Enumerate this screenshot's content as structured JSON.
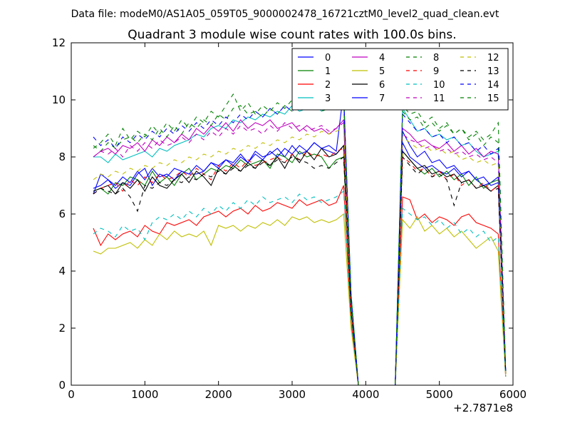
{
  "suptitle": "Data file: modeM0/AS1A05_059T05_9000002478_16721cztM0_level2_quad_clean.evt",
  "chart_data": {
    "type": "line",
    "title": "Quadrant 3 module wise count rates with 100.0s bins.",
    "xlabel": "",
    "ylabel": "",
    "x_offset_label": "+2.7871e8",
    "xlim": [
      0,
      6000
    ],
    "ylim": [
      0,
      12
    ],
    "xticks": [
      0,
      1000,
      2000,
      3000,
      4000,
      5000,
      6000
    ],
    "yticks": [
      0,
      2,
      4,
      6,
      8,
      10,
      12
    ],
    "grid": false,
    "legend_position": "top-right",
    "x": [
      300,
      400,
      500,
      600,
      700,
      800,
      900,
      1000,
      1100,
      1200,
      1300,
      1400,
      1500,
      1600,
      1700,
      1800,
      1900,
      2000,
      2100,
      2200,
      2300,
      2400,
      2500,
      2600,
      2700,
      2800,
      2900,
      3000,
      3100,
      3200,
      3300,
      3400,
      3500,
      3600,
      3700,
      3800,
      3900,
      4000,
      4100,
      4200,
      4300,
      4400,
      4500,
      4600,
      4700,
      4800,
      4900,
      5000,
      5100,
      5200,
      5300,
      5400,
      5500,
      5600,
      5700,
      5800,
      5900
    ],
    "series": [
      {
        "name": "0",
        "color": "#0000ff",
        "dash": "solid",
        "values": [
          6.7,
          7.4,
          7.2,
          6.9,
          7.1,
          7.0,
          7.4,
          7.6,
          7.0,
          7.4,
          7.3,
          7.6,
          7.5,
          7.4,
          7.4,
          7.5,
          7.8,
          7.7,
          7.9,
          7.8,
          8.1,
          7.8,
          8.2,
          8.0,
          8.1,
          8.3,
          8.0,
          8.4,
          8.1,
          8.2,
          8.5,
          8.3,
          8.2,
          8.1,
          8.4,
          2.8,
          0,
          0,
          0,
          0,
          0,
          0,
          8.5,
          8.0,
          7.8,
          7.6,
          7.7,
          7.5,
          7.4,
          7.6,
          7.3,
          7.5,
          7.2,
          7.0,
          7.1,
          7.3,
          0.5
        ]
      },
      {
        "name": "1",
        "color": "#008000",
        "dash": "solid",
        "values": [
          6.8,
          6.9,
          6.7,
          7.1,
          7.0,
          7.3,
          7.2,
          7.0,
          7.5,
          7.1,
          7.3,
          7.0,
          7.4,
          7.6,
          7.2,
          7.4,
          7.6,
          7.5,
          7.7,
          7.6,
          7.9,
          7.7,
          7.8,
          7.9,
          7.6,
          8.1,
          8.0,
          7.8,
          8.2,
          8.0,
          8.1,
          8.0,
          7.6,
          7.9,
          8.0,
          2.6,
          0,
          0,
          0,
          0,
          0,
          0,
          8.2,
          7.9,
          7.6,
          7.4,
          7.6,
          7.3,
          7.5,
          7.2,
          7.4,
          7.0,
          7.3,
          6.9,
          7.1,
          7.2,
          0.4
        ]
      },
      {
        "name": "2",
        "color": "#ff0000",
        "dash": "solid",
        "values": [
          5.5,
          4.9,
          5.3,
          5.1,
          5.3,
          5.4,
          5.2,
          5.6,
          5.4,
          5.3,
          5.7,
          5.6,
          5.7,
          5.8,
          5.6,
          5.9,
          6.0,
          6.1,
          5.9,
          6.1,
          6.2,
          6.0,
          6.3,
          6.1,
          6.2,
          6.4,
          6.3,
          6.2,
          6.5,
          6.3,
          6.4,
          6.5,
          6.3,
          6.4,
          7.0,
          2.2,
          0,
          0,
          0,
          0,
          0,
          0,
          6.6,
          6.5,
          5.8,
          6.0,
          5.7,
          5.9,
          5.8,
          5.6,
          5.9,
          6.0,
          5.7,
          5.6,
          5.5,
          5.3,
          0.3
        ]
      },
      {
        "name": "3",
        "color": "#00bfbf",
        "dash": "solid",
        "values": [
          8.0,
          8.0,
          7.8,
          8.1,
          7.9,
          8.0,
          8.1,
          8.2,
          8.0,
          8.3,
          8.2,
          8.4,
          8.5,
          8.6,
          8.8,
          8.7,
          9.0,
          9.1,
          9.0,
          9.3,
          9.2,
          9.4,
          9.3,
          9.5,
          9.4,
          9.6,
          9.5,
          9.8,
          9.6,
          9.7,
          9.9,
          9.6,
          9.8,
          9.7,
          10.0,
          3.2,
          0,
          0,
          0,
          0,
          0,
          0,
          9.7,
          9.3,
          8.9,
          9.0,
          8.7,
          8.8,
          8.6,
          8.7,
          8.4,
          8.5,
          8.2,
          8.0,
          8.1,
          8.2,
          0.5
        ]
      },
      {
        "name": "4",
        "color": "#bf00bf",
        "dash": "solid",
        "values": [
          8.0,
          8.2,
          8.3,
          8.1,
          8.4,
          8.3,
          8.5,
          8.2,
          8.6,
          8.4,
          8.7,
          8.5,
          8.8,
          8.6,
          9.0,
          8.8,
          9.1,
          8.9,
          9.2,
          8.9,
          9.3,
          9.0,
          9.2,
          9.1,
          9.3,
          9.0,
          9.1,
          9.2,
          8.9,
          9.1,
          8.9,
          9.0,
          8.8,
          9.0,
          9.3,
          3.0,
          0,
          0,
          0,
          0,
          0,
          0,
          9.0,
          8.8,
          8.5,
          8.6,
          8.4,
          8.3,
          8.5,
          8.2,
          8.4,
          8.1,
          8.3,
          8.0,
          8.2,
          8.1,
          0.5
        ]
      },
      {
        "name": "5",
        "color": "#bfbf00",
        "dash": "solid",
        "values": [
          4.7,
          4.6,
          4.8,
          4.8,
          4.9,
          5.0,
          4.8,
          5.1,
          4.9,
          5.3,
          5.1,
          5.4,
          5.2,
          5.3,
          5.2,
          5.4,
          4.9,
          5.6,
          5.5,
          5.6,
          5.4,
          5.6,
          5.5,
          5.7,
          5.6,
          5.8,
          5.6,
          5.9,
          5.8,
          5.9,
          5.7,
          5.8,
          5.7,
          5.8,
          6.0,
          2.0,
          0,
          0,
          0,
          0,
          0,
          0,
          5.8,
          5.5,
          5.9,
          5.4,
          5.6,
          5.3,
          5.5,
          5.2,
          5.4,
          5.1,
          4.8,
          5.0,
          5.2,
          4.7,
          0.3
        ]
      },
      {
        "name": "6",
        "color": "#000000",
        "dash": "solid",
        "values": [
          6.8,
          6.9,
          7.0,
          6.7,
          7.1,
          6.9,
          7.2,
          6.8,
          7.3,
          7.0,
          6.9,
          7.2,
          7.4,
          7.1,
          7.5,
          7.3,
          7.0,
          7.6,
          7.4,
          7.7,
          7.5,
          7.8,
          7.6,
          7.9,
          7.7,
          8.0,
          7.6,
          8.1,
          7.8,
          8.2,
          7.9,
          8.3,
          8.0,
          8.1,
          8.4,
          2.7,
          0,
          0,
          0,
          0,
          0,
          0,
          8.2,
          7.9,
          7.6,
          7.7,
          7.4,
          7.5,
          7.3,
          7.4,
          7.1,
          7.2,
          6.9,
          7.0,
          6.8,
          7.0,
          0.4
        ]
      },
      {
        "name": "7",
        "color": "#0000ff",
        "dash": "solid",
        "values": [
          6.9,
          7.0,
          7.2,
          7.0,
          7.3,
          7.1,
          7.5,
          7.2,
          7.6,
          7.3,
          7.4,
          7.2,
          7.5,
          7.4,
          7.7,
          7.5,
          7.8,
          7.6,
          7.9,
          7.7,
          8.0,
          7.8,
          8.1,
          7.9,
          8.2,
          8.0,
          8.3,
          8.1,
          8.4,
          8.2,
          8.5,
          8.3,
          8.4,
          8.2,
          10.3,
          2.9,
          0,
          0,
          0,
          0,
          0,
          0,
          8.9,
          8.4,
          8.0,
          8.2,
          7.8,
          7.9,
          7.6,
          7.7,
          7.4,
          7.5,
          7.2,
          7.3,
          7.0,
          7.1,
          0.5
        ]
      },
      {
        "name": "8",
        "color": "#008000",
        "dash": "dashed",
        "values": [
          8.4,
          8.2,
          8.5,
          8.3,
          8.6,
          8.7,
          8.5,
          8.8,
          8.6,
          9.0,
          8.7,
          9.1,
          8.8,
          9.2,
          9.0,
          9.3,
          9.1,
          9.5,
          9.3,
          9.7,
          9.8,
          9.5,
          9.6,
          9.4,
          9.7,
          9.5,
          9.8,
          9.6,
          9.9,
          9.7,
          9.8,
          9.6,
          9.7,
          9.8,
          9.9,
          3.1,
          0,
          0,
          0,
          0,
          0,
          0,
          9.6,
          9.3,
          9.4,
          9.0,
          9.2,
          8.9,
          9.1,
          8.8,
          9.0,
          8.6,
          8.8,
          8.4,
          8.7,
          8.5,
          0.5
        ]
      },
      {
        "name": "9",
        "color": "#ff0000",
        "dash": "dashed",
        "values": [
          6.7,
          6.9,
          7.0,
          7.1,
          6.8,
          7.2,
          7.0,
          7.3,
          7.1,
          7.4,
          7.2,
          7.3,
          7.5,
          7.3,
          7.6,
          7.4,
          7.2,
          7.7,
          7.5,
          7.8,
          7.6,
          7.9,
          7.7,
          7.8,
          7.9,
          8.0,
          7.8,
          8.1,
          7.9,
          8.2,
          8.0,
          8.1,
          8.0,
          8.2,
          8.3,
          2.6,
          0,
          0,
          0,
          0,
          0,
          0,
          8.0,
          7.8,
          7.5,
          7.6,
          7.3,
          7.5,
          7.2,
          7.4,
          7.0,
          7.2,
          6.9,
          7.1,
          6.8,
          7.0,
          0.4
        ]
      },
      {
        "name": "10",
        "color": "#00bfbf",
        "dash": "dashed",
        "values": [
          5.3,
          5.5,
          5.4,
          5.2,
          5.6,
          5.4,
          5.5,
          5.1,
          5.7,
          5.9,
          5.8,
          6.0,
          5.8,
          6.1,
          5.9,
          6.2,
          6.0,
          6.3,
          6.1,
          6.4,
          6.2,
          6.5,
          6.3,
          6.6,
          6.4,
          6.5,
          6.6,
          6.4,
          6.7,
          6.5,
          6.6,
          6.4,
          6.5,
          6.6,
          6.8,
          2.3,
          0,
          0,
          0,
          0,
          0,
          0,
          6.2,
          6.0,
          5.8,
          5.9,
          5.6,
          5.8,
          5.5,
          5.7,
          5.3,
          5.5,
          5.2,
          5.4,
          5.0,
          5.2,
          0.3
        ]
      },
      {
        "name": "11",
        "color": "#bf00bf",
        "dash": "dashed",
        "values": [
          8.0,
          8.2,
          8.1,
          8.3,
          8.0,
          8.4,
          8.2,
          8.5,
          8.3,
          8.6,
          8.4,
          8.5,
          8.7,
          8.5,
          8.8,
          8.6,
          8.9,
          8.7,
          9.0,
          8.8,
          9.1,
          8.9,
          9.0,
          8.8,
          9.1,
          8.9,
          9.2,
          9.0,
          9.1,
          8.9,
          9.0,
          9.1,
          8.9,
          9.0,
          9.2,
          2.9,
          0,
          0,
          0,
          0,
          0,
          0,
          8.8,
          8.6,
          8.5,
          8.3,
          8.4,
          8.2,
          8.3,
          8.1,
          8.2,
          8.0,
          8.1,
          7.9,
          8.0,
          7.8,
          0.4
        ]
      },
      {
        "name": "12",
        "color": "#bfbf00",
        "dash": "dashed",
        "values": [
          7.2,
          7.4,
          7.3,
          7.5,
          7.4,
          7.6,
          7.5,
          7.7,
          7.6,
          7.8,
          7.7,
          7.9,
          7.8,
          8.0,
          7.9,
          8.1,
          8.0,
          8.2,
          8.1,
          8.3,
          8.2,
          8.4,
          8.3,
          8.5,
          8.4,
          8.6,
          8.5,
          8.7,
          8.6,
          8.8,
          8.7,
          8.9,
          8.8,
          8.9,
          9.0,
          2.9,
          0,
          0,
          0,
          0,
          0,
          0,
          8.7,
          8.5,
          8.3,
          8.4,
          8.2,
          8.3,
          8.1,
          8.2,
          7.9,
          8.0,
          7.8,
          7.9,
          7.7,
          7.8,
          0.4
        ]
      },
      {
        "name": "13",
        "color": "#000000",
        "dash": "dashed",
        "values": [
          6.7,
          6.9,
          6.8,
          6.7,
          6.9,
          6.6,
          6.1,
          7.0,
          6.9,
          7.1,
          7.0,
          7.2,
          7.1,
          7.3,
          7.2,
          7.4,
          7.3,
          7.5,
          7.4,
          7.6,
          7.5,
          7.7,
          7.6,
          7.8,
          7.7,
          7.9,
          7.8,
          8.0,
          7.9,
          7.8,
          7.6,
          7.7,
          7.6,
          7.8,
          8.0,
          2.6,
          0,
          0,
          0,
          0,
          0,
          0,
          8.0,
          7.7,
          7.4,
          7.6,
          7.3,
          7.4,
          7.2,
          6.3,
          7.1,
          7.2,
          6.9,
          7.0,
          6.8,
          6.9,
          0.4
        ]
      },
      {
        "name": "14",
        "color": "#0000ff",
        "dash": "dashed",
        "values": [
          8.7,
          8.4,
          8.6,
          8.3,
          8.7,
          8.5,
          8.8,
          8.6,
          8.9,
          8.7,
          9.0,
          8.8,
          9.1,
          8.9,
          9.2,
          9.0,
          9.3,
          9.1,
          9.4,
          9.2,
          9.5,
          9.3,
          9.6,
          9.4,
          9.7,
          9.5,
          9.8,
          9.6,
          9.9,
          9.7,
          10.0,
          9.8,
          9.9,
          9.7,
          10.1,
          3.2,
          0,
          0,
          0,
          0,
          0,
          0,
          9.5,
          9.2,
          8.9,
          9.0,
          8.7,
          8.8,
          8.5,
          8.7,
          8.4,
          8.5,
          8.2,
          8.4,
          8.1,
          8.3,
          0.5
        ]
      },
      {
        "name": "15",
        "color": "#008000",
        "dash": "dashed",
        "values": [
          8.3,
          8.5,
          8.8,
          8.4,
          9.0,
          8.6,
          8.9,
          8.7,
          9.1,
          8.8,
          9.2,
          8.9,
          9.3,
          9.0,
          9.4,
          9.2,
          9.6,
          9.4,
          9.8,
          10.2,
          9.6,
          9.9,
          9.5,
          9.8,
          9.6,
          9.9,
          9.7,
          10.0,
          9.8,
          9.9,
          9.7,
          10.1,
          9.8,
          9.7,
          10.2,
          3.2,
          0,
          0,
          0,
          0,
          0,
          0,
          9.8,
          9.5,
          9.6,
          9.2,
          9.4,
          9.0,
          9.2,
          8.8,
          9.0,
          8.7,
          8.9,
          8.6,
          8.8,
          9.2,
          0.5
        ]
      }
    ]
  }
}
